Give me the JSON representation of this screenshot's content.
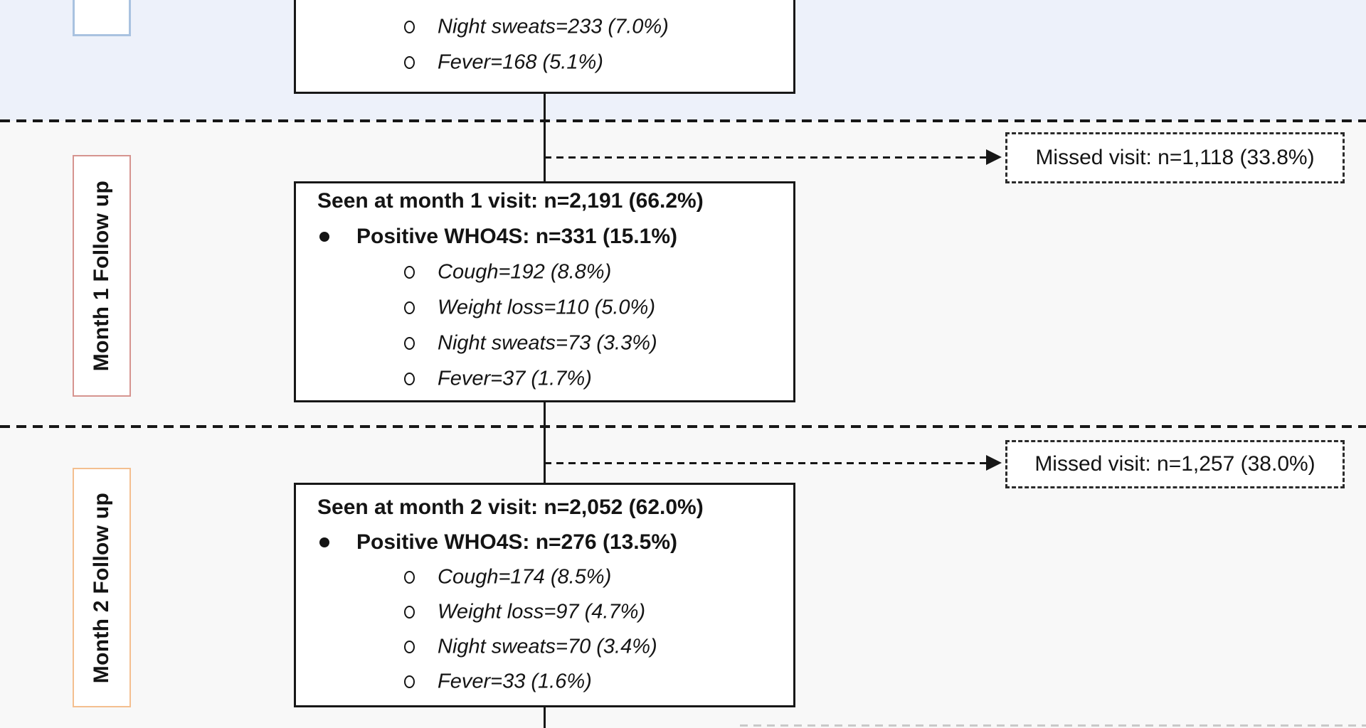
{
  "colors": {
    "baseline_band_bg": "#edf1fa",
    "followup_band_bg": "#f8f8f8",
    "box_border": "#171717",
    "baseline_label_border": "#a9c2e0",
    "month1_label_border": "#d6948f",
    "month2_label_border": "#f4bf8f",
    "text": "#141414"
  },
  "baseline": {
    "items": [
      "Night sweats=233 (7.0%)",
      "Fever=168 (5.1%)"
    ]
  },
  "month1": {
    "label": "Month 1 Follow up",
    "missed": "Missed visit: n=1,118 (33.8%)",
    "seen": "Seen at month 1 visit: n=2,191 (66.2%)",
    "positive": "Positive WHO4S: n=331 (15.1%)",
    "symptoms": [
      "Cough=192 (8.8%)",
      "Weight loss=110 (5.0%)",
      "Night sweats=73 (3.3%)",
      "Fever=37 (1.7%)"
    ]
  },
  "month2": {
    "label": "Month 2 Follow up",
    "missed": "Missed visit: n=1,257 (38.0%)",
    "seen": "Seen at month 2 visit: n=2,052 (62.0%)",
    "positive": "Positive WHO4S: n=276 (13.5%)",
    "symptoms": [
      "Cough=174 (8.5%)",
      "Weight loss=97 (4.7%)",
      "Night sweats=70 (3.4%)",
      "Fever=33 (1.6%)"
    ]
  }
}
